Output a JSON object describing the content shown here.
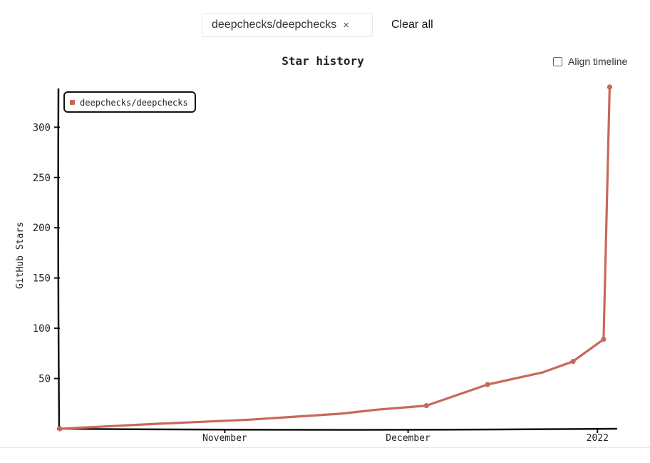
{
  "filter": {
    "chip_label": "deepchecks/deepchecks",
    "chip_close": "×",
    "clear_all": "Clear all"
  },
  "align_timeline_label": "Align timeline",
  "chart_data": {
    "type": "line",
    "title": "Star history",
    "xlabel": "",
    "ylabel": "GitHub Stars",
    "x_axis_type": "date",
    "xlim": [
      "2021-10-05",
      "2022-01-04"
    ],
    "ylim": [
      0,
      340
    ],
    "x_ticks": [
      {
        "label": "November",
        "date": "2021-11-01"
      },
      {
        "label": "December",
        "date": "2021-12-01"
      },
      {
        "label": "2022",
        "date": "2022-01-01"
      }
    ],
    "y_ticks": [
      50,
      100,
      150,
      200,
      250,
      300
    ],
    "legend": {
      "placement": "top-left"
    },
    "color": "#c8685b",
    "series": [
      {
        "name": "deepchecks/deepchecks",
        "x": [
          "2021-10-05",
          "2021-10-21",
          "2021-11-05",
          "2021-11-20",
          "2021-11-26",
          "2021-12-04",
          "2021-12-14",
          "2021-12-23",
          "2021-12-28",
          "2022-01-02",
          "2022-01-03"
        ],
        "y": [
          0,
          5,
          9,
          15,
          19,
          23,
          44,
          56,
          67,
          89,
          340
        ],
        "markers": [
          true,
          false,
          false,
          false,
          false,
          true,
          true,
          false,
          true,
          true,
          true
        ]
      }
    ]
  }
}
